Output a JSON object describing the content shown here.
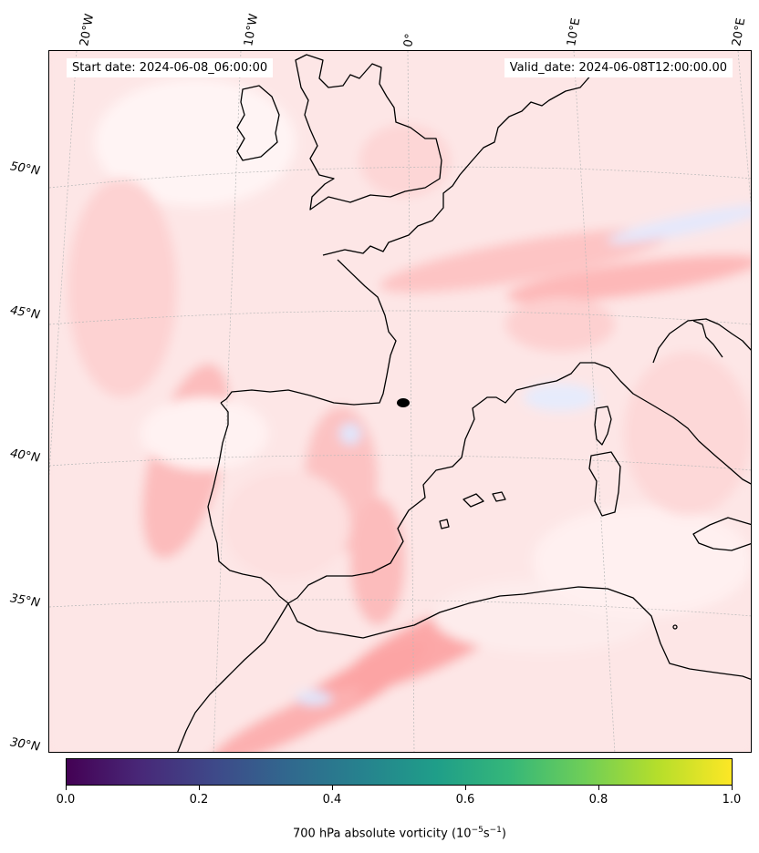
{
  "header": {
    "start_date": "Start date: 2024-06-08_06:00:00",
    "valid_date": "Valid_date: 2024-06-08T12:00:00.00"
  },
  "lon_labels": [
    "20°W",
    "10°W",
    "0°",
    "10°E",
    "20°E"
  ],
  "lat_labels": [
    "50°N",
    "45°N",
    "40°N",
    "35°N",
    "30°N"
  ],
  "colorbar": {
    "ticks": [
      "0.0",
      "0.2",
      "0.4",
      "0.6",
      "0.8",
      "1.0"
    ],
    "title": "700 hPa absolute vorticity (10",
    "title_sup1": "−5",
    "title_mid": "s",
    "title_sup2": "−1",
    "title_end": ")"
  },
  "colors": {
    "background": "#fde4e4",
    "positive": "#fcb4b4",
    "negative": "#dde4fc",
    "coastline": "#000000",
    "colormap": "viridis"
  }
}
